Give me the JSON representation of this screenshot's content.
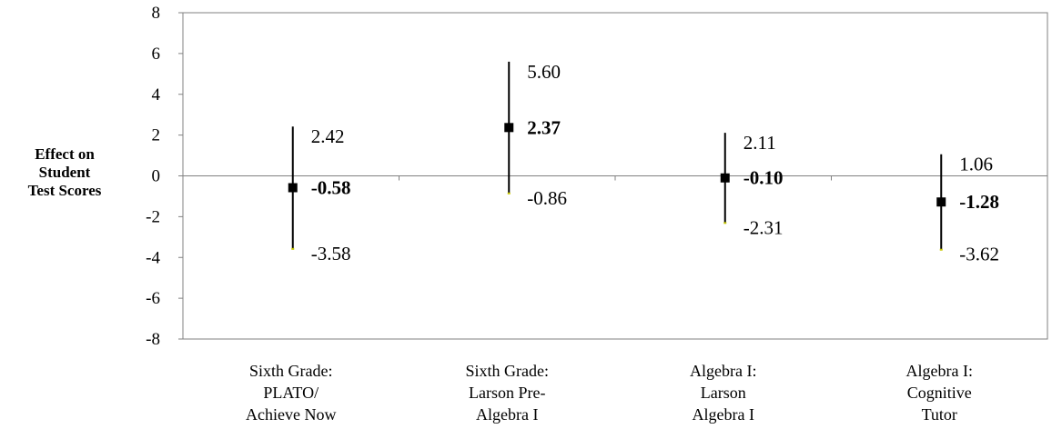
{
  "chart_data": {
    "type": "error-bar",
    "ylabel": [
      "Effect on",
      "Student",
      "Test Scores"
    ],
    "ylim": [
      -8,
      8
    ],
    "yticks": [
      8,
      6,
      4,
      2,
      0,
      -2,
      -4,
      -6,
      -8
    ],
    "grid": false,
    "categories": [
      [
        "Sixth Grade:",
        "PLATO/",
        "Achieve Now"
      ],
      [
        "Sixth Grade:",
        "Larson Pre-",
        "Algebra I"
      ],
      [
        "Algebra I:",
        "Larson",
        "Algebra I"
      ],
      [
        "Algebra I:",
        "Cognitive",
        "Tutor"
      ]
    ],
    "estimates": [
      -0.58,
      2.37,
      -0.1,
      -1.28
    ],
    "upper": [
      2.42,
      5.6,
      2.11,
      1.06
    ],
    "lower": [
      -3.58,
      -0.86,
      -2.31,
      -3.62
    ],
    "estimate_labels": [
      "-0.58",
      "2.37",
      "-0.10",
      "-1.28"
    ],
    "upper_labels": [
      "2.42",
      "5.60",
      "2.11",
      "1.06"
    ],
    "lower_labels": [
      "-3.58",
      "-0.86",
      "-2.31",
      "-3.62"
    ]
  }
}
